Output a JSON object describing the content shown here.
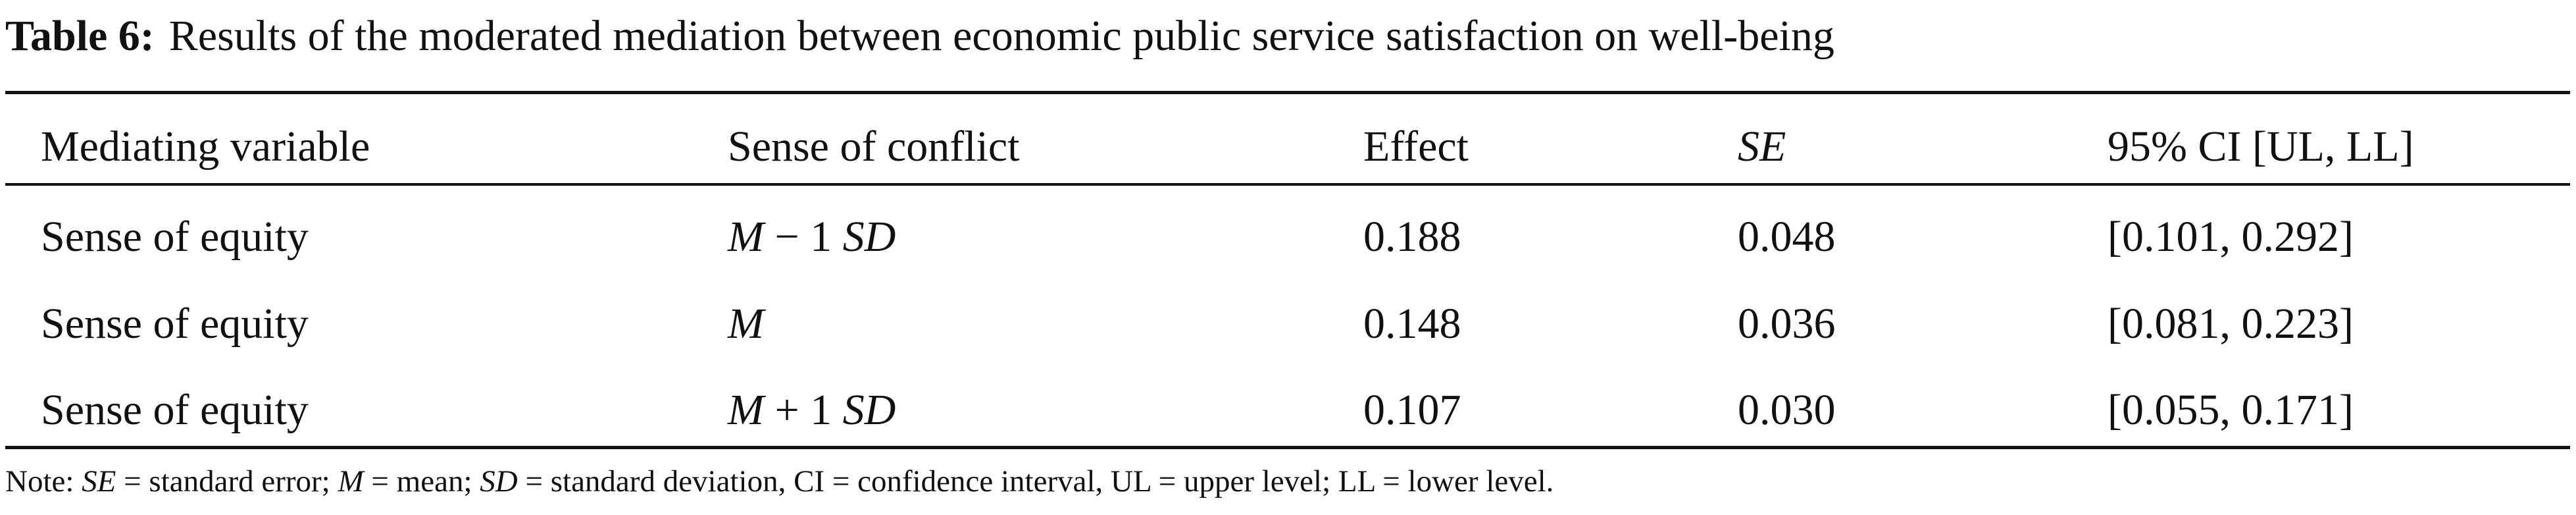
{
  "caption": {
    "label": "Table 6:",
    "text": "Results of the moderated mediation between economic public service satisfaction on well-being"
  },
  "table": {
    "header": [
      "Mediating variable",
      "Sense of conflict",
      "Effect",
      [
        {
          "text": "SE",
          "italic": true
        }
      ],
      "95% CI [UL, LL]"
    ],
    "rows": [
      [
        "Sense of equity",
        [
          {
            "text": "M",
            "italic": true
          },
          {
            "text": " − 1 ",
            "italic": false
          },
          {
            "text": "SD",
            "italic": true
          }
        ],
        "0.188",
        "0.048",
        "[0.101, 0.292]"
      ],
      [
        "Sense of equity",
        [
          {
            "text": "M",
            "italic": true
          }
        ],
        "0.148",
        "0.036",
        "[0.081, 0.223]"
      ],
      [
        "Sense of equity",
        [
          {
            "text": "M",
            "italic": true
          },
          {
            "text": " + 1 ",
            "italic": false
          },
          {
            "text": "SD",
            "italic": true
          }
        ],
        "0.107",
        "0.030",
        "[0.055, 0.171]"
      ]
    ]
  },
  "note": [
    {
      "text": "Note: ",
      "italic": false
    },
    {
      "text": "SE",
      "italic": true
    },
    {
      "text": " = standard error; ",
      "italic": false
    },
    {
      "text": "M",
      "italic": true
    },
    {
      "text": " = mean; ",
      "italic": false
    },
    {
      "text": "SD",
      "italic": true
    },
    {
      "text": " = standard deviation, CI = confidence interval, UL = upper level; LL = lower level.",
      "italic": false
    }
  ]
}
